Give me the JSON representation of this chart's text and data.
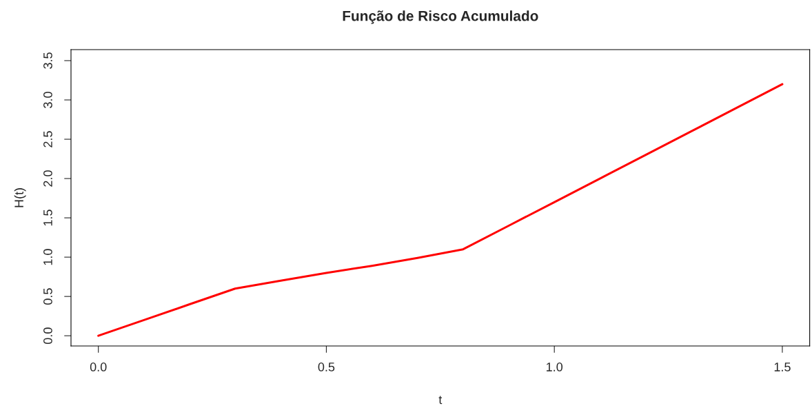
{
  "chart_data": {
    "type": "line",
    "title": "Função de Risco Acumulado",
    "xlabel": "t",
    "ylabel": "H(t)",
    "x": [
      0,
      0.1,
      0.2,
      0.3,
      0.4,
      0.5,
      0.6,
      0.7,
      0.8,
      0.9,
      1.0,
      1.1,
      1.2,
      1.3,
      1.4,
      1.5
    ],
    "series": [
      {
        "color": "#ff0000",
        "values": [
          0,
          0.2,
          0.4,
          0.6,
          0.7,
          0.8,
          0.89,
          0.99,
          1.1,
          1.4,
          1.7,
          2.0,
          2.3,
          2.6,
          2.9,
          3.2
        ]
      }
    ],
    "xlim": [
      -0.06,
      1.56
    ],
    "ylim": [
      -0.13,
      3.64
    ],
    "xticks": [
      {
        "value": 0,
        "label": "0.0"
      },
      0.5,
      {
        "value": 1,
        "label": "1.0"
      },
      1.5
    ],
    "yticks": [
      {
        "value": 0,
        "label": "0.0"
      },
      0.5,
      {
        "value": 1,
        "label": "1.0"
      },
      1.5,
      {
        "value": 2,
        "label": "2.0"
      },
      2.5,
      {
        "value": 3,
        "label": "3.0"
      },
      3.5
    ],
    "grid": false,
    "legend": false,
    "marker": "none",
    "line_style": "solid"
  }
}
